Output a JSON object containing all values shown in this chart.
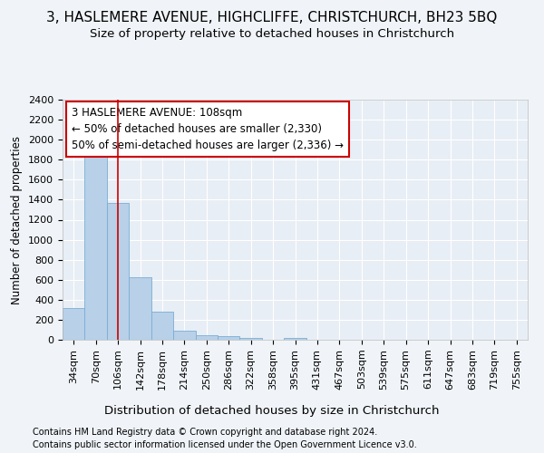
{
  "title_line1": "3, HASLEMERE AVENUE, HIGHCLIFFE, CHRISTCHURCH, BH23 5BQ",
  "title_line2": "Size of property relative to detached houses in Christchurch",
  "xlabel": "Distribution of detached houses by size in Christchurch",
  "ylabel": "Number of detached properties",
  "footer_line1": "Contains HM Land Registry data © Crown copyright and database right 2024.",
  "footer_line2": "Contains public sector information licensed under the Open Government Licence v3.0.",
  "bin_labels": [
    "34sqm",
    "70sqm",
    "106sqm",
    "142sqm",
    "178sqm",
    "214sqm",
    "250sqm",
    "286sqm",
    "322sqm",
    "358sqm",
    "395sqm",
    "431sqm",
    "467sqm",
    "503sqm",
    "539sqm",
    "575sqm",
    "611sqm",
    "647sqm",
    "683sqm",
    "719sqm",
    "755sqm"
  ],
  "bar_values": [
    320,
    1950,
    1370,
    625,
    280,
    95,
    45,
    35,
    20,
    0,
    20,
    0,
    0,
    0,
    0,
    0,
    0,
    0,
    0,
    0,
    0
  ],
  "bar_color": "#b8d0e8",
  "bar_edge_color": "#7aaed6",
  "vline_x": 2.0,
  "vline_color": "#cc0000",
  "annotation_text": "3 HASLEMERE AVENUE: 108sqm\n← 50% of detached houses are smaller (2,330)\n50% of semi-detached houses are larger (2,336) →",
  "annotation_box_color": "white",
  "annotation_box_edge_color": "#cc0000",
  "ylim": [
    0,
    2400
  ],
  "yticks": [
    0,
    200,
    400,
    600,
    800,
    1000,
    1200,
    1400,
    1600,
    1800,
    2000,
    2200,
    2400
  ],
  "background_color": "#f0f4f8",
  "axes_bg_color": "#e8eef5",
  "grid_color": "white",
  "title1_fontsize": 11,
  "title2_fontsize": 9.5,
  "xlabel_fontsize": 9.5,
  "ylabel_fontsize": 8.5,
  "tick_fontsize": 8,
  "annot_fontsize": 8.5,
  "footer_fontsize": 7
}
